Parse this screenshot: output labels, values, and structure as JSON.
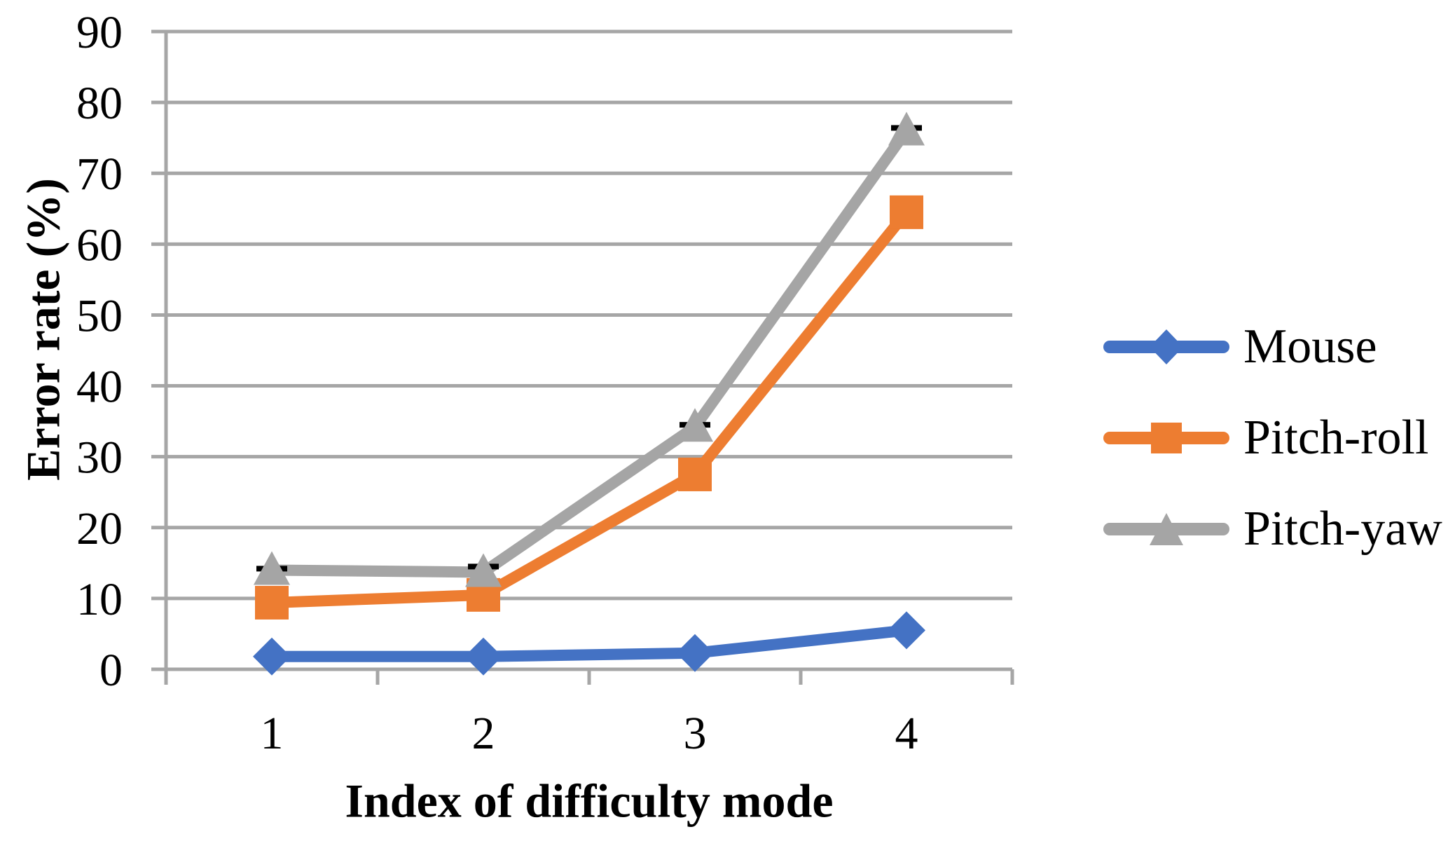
{
  "chart_data": {
    "type": "line",
    "title": "",
    "xlabel": "Index of difficulty mode",
    "ylabel": "Error rate (%)",
    "x_categories": [
      "1",
      "2",
      "3",
      "4"
    ],
    "y_ticks": [
      0,
      10,
      20,
      30,
      40,
      50,
      60,
      70,
      80,
      90
    ],
    "ylim": [
      0,
      90
    ],
    "grid": "horizontal",
    "legend_position": "right",
    "axis_color": "#A6A6A6",
    "error_bar_color": "#000000",
    "series": [
      {
        "name": "Mouse",
        "color": "#4472C4",
        "marker": "diamond",
        "values": [
          1.8,
          1.8,
          2.3,
          5.5
        ]
      },
      {
        "name": "Pitch-roll",
        "color": "#ED7D31",
        "marker": "square",
        "values": [
          9.4,
          10.5,
          27.5,
          64.5
        ]
      },
      {
        "name": "Pitch-yaw",
        "color": "#A5A5A5",
        "marker": "triangle",
        "values": [
          14.0,
          13.7,
          34.2,
          76.0
        ],
        "error_cap_top": [
          14.2,
          14.5,
          34.5,
          76.4
        ]
      }
    ]
  },
  "legend": {
    "items": [
      {
        "label": "Mouse"
      },
      {
        "label": "Pitch-roll"
      },
      {
        "label": "Pitch-yaw"
      }
    ]
  }
}
